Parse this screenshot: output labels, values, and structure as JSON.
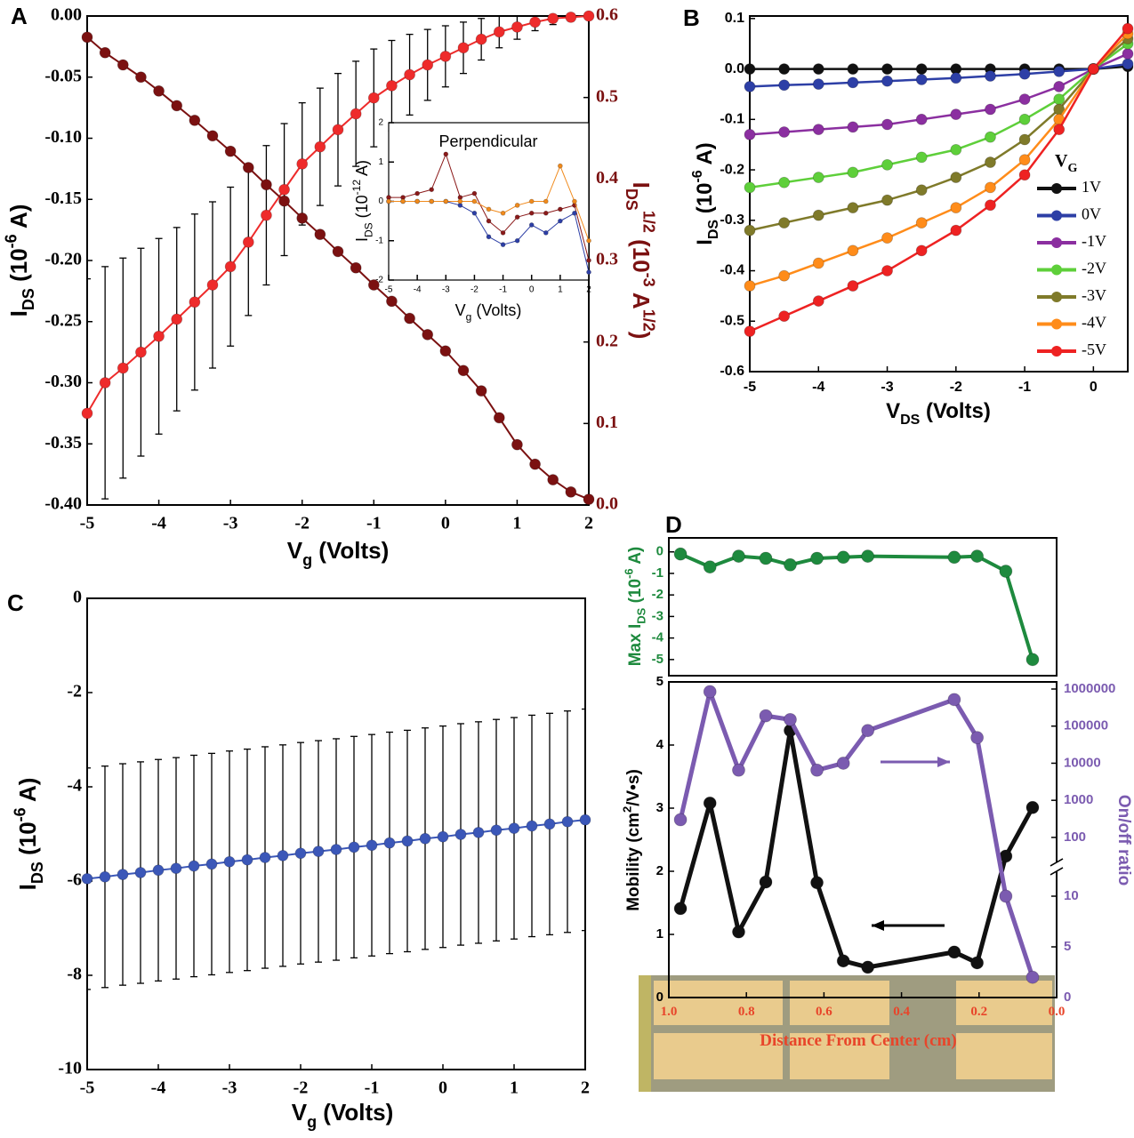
{
  "chart_data": [
    {
      "type": "line",
      "label": "A",
      "x": [
        -5,
        -4.75,
        -4.5,
        -4.25,
        -4,
        -3.75,
        -3.5,
        -3.25,
        -3,
        -2.75,
        -2.5,
        -2.25,
        -2,
        -1.75,
        -1.5,
        -1.25,
        -1,
        -0.75,
        -0.5,
        -0.25,
        0,
        0.25,
        0.5,
        0.75,
        1,
        1.25,
        1.5,
        1.75,
        2
      ],
      "xlim": [
        -5,
        2
      ],
      "xticks": [
        -5,
        -4,
        -3,
        -2,
        -1,
        0,
        1,
        2
      ],
      "xlabel": [
        "V",
        "g",
        " (Volts)"
      ],
      "ylim": [
        -0.4,
        0
      ],
      "yticks": [
        {
          "value": -0.4,
          "label": "-0.40"
        },
        -0.35,
        {
          "value": -0.3,
          "label": "-0.30"
        },
        -0.25,
        {
          "value": -0.2,
          "label": "-0.20"
        },
        -0.15,
        {
          "value": -0.1,
          "label": "-0.10"
        },
        -0.05,
        {
          "value": 0,
          "label": "0.00"
        }
      ],
      "ylabel": [
        "I",
        "DS",
        " (10",
        "-6",
        " A)"
      ],
      "y2lim": [
        0,
        0.6
      ],
      "y2ticks": [
        {
          "value": 0,
          "label": "0.0"
        },
        0.1,
        0.2,
        0.3,
        0.4,
        0.5,
        0.6
      ],
      "y2label": [
        "I",
        "DS",
        "1/2",
        " (10",
        "-3",
        " A",
        "1/2",
        ")"
      ],
      "series": [
        {
          "color": "#ee2b2b",
          "values": [
            -0.325,
            -0.3,
            -0.288,
            -0.275,
            -0.262,
            -0.248,
            -0.234,
            -0.22,
            -0.205,
            -0.185,
            -0.163,
            -0.142,
            -0.121,
            -0.107,
            -0.093,
            -0.08,
            -0.067,
            -0.057,
            -0.048,
            -0.04,
            -0.033,
            -0.026,
            -0.019,
            -0.013,
            -0.009,
            -0.005,
            -0.002,
            -0.001,
            0
          ],
          "errors": [
            0.11,
            0.095,
            0.09,
            0.085,
            0.08,
            0.075,
            0.072,
            0.068,
            0.065,
            0.06,
            0.057,
            0.054,
            0.05,
            0.048,
            0.046,
            0.043,
            0.04,
            0.037,
            0.033,
            0.029,
            0.025,
            0.021,
            0.017,
            0.013,
            0.01,
            0.007,
            0.005,
            0.003,
            0.002
          ]
        },
        {
          "color": "#7b1111",
          "axis": "y2",
          "values": [
            0.574,
            0.555,
            0.54,
            0.525,
            0.508,
            0.49,
            0.472,
            0.453,
            0.434,
            0.414,
            0.393,
            0.373,
            0.352,
            0.332,
            0.311,
            0.291,
            0.27,
            0.25,
            0.229,
            0.209,
            0.189,
            0.165,
            0.14,
            0.107,
            0.074,
            0.05,
            0.031,
            0.016,
            0.007
          ]
        }
      ]
    },
    {
      "type": "line",
      "title": "Perpendicular",
      "x": [
        -5,
        -4.5,
        -4,
        -3.5,
        -3,
        -2.5,
        -2,
        -1.5,
        -1,
        -0.5,
        0,
        0.5,
        1,
        1.5,
        2
      ],
      "xlim": [
        -5,
        2
      ],
      "xticks": [
        -5,
        -4,
        -3,
        -2,
        -1,
        0,
        1,
        2
      ],
      "xlabel": [
        "V",
        "g",
        " (Volts)"
      ],
      "ylim": [
        -2,
        2
      ],
      "yticks": [
        -2,
        -1,
        0,
        1,
        2
      ],
      "ylabel": [
        "I",
        "DS",
        " (10",
        "-12",
        " A)"
      ],
      "series": [
        {
          "color": "#8b1a1a",
          "values": [
            0.1,
            0.1,
            0.2,
            0.3,
            1.2,
            0.1,
            0.2,
            -0.5,
            -0.8,
            -0.4,
            -0.3,
            -0.3,
            -0.2,
            -0.1,
            -1.5
          ]
        },
        {
          "color": "#2d3fa6",
          "values": [
            0,
            0,
            0,
            0,
            0,
            -0.1,
            -0.3,
            -0.9,
            -1.1,
            -1,
            -0.6,
            -0.8,
            -0.5,
            -0.3,
            -1.8
          ]
        },
        {
          "color": "#f08a1c",
          "values": [
            0,
            0,
            0,
            0,
            0,
            0,
            0,
            -0.2,
            -0.3,
            -0.1,
            0,
            0,
            0.9,
            0,
            -1
          ]
        }
      ]
    },
    {
      "type": "line",
      "label": "B",
      "x": [
        -5,
        -4.5,
        -4,
        -3.5,
        -3,
        -2.5,
        -2,
        -1.5,
        -1,
        -0.5,
        0,
        0.5
      ],
      "xlim": [
        -5,
        0.5
      ],
      "xticks": [
        -5,
        -4,
        -3,
        -2,
        -1,
        0
      ],
      "xlabel": [
        "V",
        "DS",
        " (Volts)"
      ],
      "ylim": [
        -0.6,
        0.105
      ],
      "yticks": [
        -0.6,
        -0.5,
        -0.4,
        -0.3,
        -0.2,
        -0.1,
        {
          "value": 0,
          "label": "0.0"
        },
        0.1
      ],
      "ylabel": [
        "I",
        "DS",
        " (10",
        "-6",
        " A)"
      ],
      "legend_title": [
        "V",
        "G"
      ],
      "legend": "right",
      "series": [
        {
          "name": "1V",
          "color": "#111111",
          "values": [
            0,
            0,
            0,
            0,
            0,
            0,
            0,
            0,
            0,
            0,
            0,
            0.005
          ]
        },
        {
          "name": "0V",
          "color": "#2d3fa6",
          "values": [
            -0.035,
            -0.032,
            -0.03,
            -0.027,
            -0.024,
            -0.021,
            -0.018,
            -0.014,
            -0.01,
            -0.005,
            0,
            0.01
          ]
        },
        {
          "name": "-1V",
          "color": "#8b2fa0",
          "values": [
            -0.13,
            -0.125,
            -0.12,
            -0.115,
            -0.11,
            -0.1,
            -0.09,
            -0.08,
            -0.06,
            -0.035,
            0,
            0.03
          ]
        },
        {
          "name": "-2V",
          "color": "#5ecf3a",
          "values": [
            -0.235,
            -0.225,
            -0.215,
            -0.205,
            -0.19,
            -0.175,
            -0.16,
            -0.135,
            -0.1,
            -0.06,
            0,
            0.05
          ]
        },
        {
          "name": "-3V",
          "color": "#7f7a2a",
          "values": [
            -0.32,
            -0.305,
            -0.29,
            -0.275,
            -0.26,
            -0.24,
            -0.215,
            -0.185,
            -0.14,
            -0.08,
            0,
            0.06
          ]
        },
        {
          "name": "-4V",
          "color": "#ff8c1a",
          "values": [
            -0.43,
            -0.41,
            -0.385,
            -0.36,
            -0.335,
            -0.305,
            -0.275,
            -0.235,
            -0.18,
            -0.1,
            0,
            0.07
          ]
        },
        {
          "name": "-5V",
          "color": "#ee2222",
          "values": [
            -0.52,
            -0.49,
            -0.46,
            -0.43,
            -0.4,
            -0.36,
            -0.32,
            -0.27,
            -0.21,
            -0.12,
            0,
            0.08
          ]
        }
      ]
    },
    {
      "type": "line",
      "label": "C",
      "x": [
        -5,
        -4.75,
        -4.5,
        -4.25,
        -4,
        -3.75,
        -3.5,
        -3.25,
        -3,
        -2.75,
        -2.5,
        -2.25,
        -2,
        -1.75,
        -1.5,
        -1.25,
        -1,
        -0.75,
        -0.5,
        -0.25,
        0,
        0.25,
        0.5,
        0.75,
        1,
        1.25,
        1.5,
        1.75,
        2
      ],
      "xlim": [
        -5,
        2
      ],
      "xticks": [
        -5,
        -4,
        -3,
        -2,
        -1,
        0,
        1,
        2
      ],
      "xlabel": [
        "V",
        "g",
        " (Volts)"
      ],
      "ylim": [
        -10,
        0
      ],
      "yticks": [
        -10,
        -8,
        -6,
        -4,
        -2,
        0
      ],
      "ylabel": [
        "I",
        "DS",
        " (10",
        "-6",
        " A)"
      ],
      "series": [
        {
          "color": "#3b57b8",
          "values": [
            -5.95,
            -5.91,
            -5.86,
            -5.82,
            -5.77,
            -5.73,
            -5.68,
            -5.64,
            -5.59,
            -5.55,
            -5.5,
            -5.46,
            -5.41,
            -5.37,
            -5.33,
            -5.28,
            -5.24,
            -5.19,
            -5.15,
            -5.1,
            -5.06,
            -5.01,
            -4.97,
            -4.92,
            -4.88,
            -4.83,
            -4.79,
            -4.74,
            -4.7
          ],
          "errors": [
            2.35,
            2.35,
            2.35,
            2.35,
            2.35,
            2.35,
            2.35,
            2.35,
            2.35,
            2.35,
            2.35,
            2.35,
            2.35,
            2.35,
            2.35,
            2.35,
            2.35,
            2.35,
            2.35,
            2.35,
            2.35,
            2.35,
            2.35,
            2.35,
            2.35,
            2.35,
            2.35,
            2.35,
            2.35
          ]
        }
      ]
    },
    {
      "type": "line",
      "label": "D",
      "x": [
        0.97,
        0.894,
        0.82,
        0.75,
        0.687,
        0.618,
        0.55,
        0.487,
        0.264,
        0.205,
        0.131,
        0.062
      ],
      "xlim": [
        1,
        0
      ],
      "ylim": [
        -5.75,
        0.65
      ],
      "yticks": [
        -5,
        -4,
        -3,
        -2,
        -1,
        0
      ],
      "ylabel": [
        "Max I",
        "DS",
        " (10",
        "-6",
        " A)"
      ],
      "ylabel_color": "#1e8a3e",
      "series": [
        {
          "color": "#1e8a3e",
          "values": [
            -0.1,
            -0.7,
            -0.2,
            -0.3,
            -0.6,
            -0.3,
            -0.25,
            -0.2,
            -0.25,
            -0.2,
            -0.9,
            -5
          ]
        }
      ]
    },
    {
      "type": "line",
      "x": [
        0.97,
        0.894,
        0.82,
        0.75,
        0.687,
        0.618,
        0.55,
        0.487,
        0.264,
        0.205,
        0.131,
        0.062
      ],
      "xlim": [
        1,
        0
      ],
      "xticks": [
        {
          "value": 1,
          "label": "1.0"
        },
        0.8,
        0.6,
        0.4,
        0.2,
        {
          "value": 0,
          "label": "0.0"
        }
      ],
      "xlabel": "Distance From Center (cm)",
      "xlabel_color": "#e8452a",
      "ylim": [
        0,
        5
      ],
      "yticks": [
        0,
        1,
        2,
        3,
        4,
        5
      ],
      "ylabel": [
        "Mobility (cm",
        "2",
        "/V•s)"
      ],
      "y2lim": [
        0,
        1000000
      ],
      "y2ticks": [
        0,
        5,
        10,
        100,
        1000,
        10000,
        100000,
        1000000
      ],
      "y2break": [
        10,
        100
      ],
      "y2label": "On/off ratio",
      "series": [
        {
          "color": "#111111",
          "values": [
            1.41,
            3.08,
            1.04,
            1.83,
            4.23,
            1.82,
            0.58,
            0.48,
            0.72,
            0.55,
            2.24,
            3.01
          ]
        },
        {
          "color": "#7b5bb0",
          "axis": "y2",
          "values": [
            300,
            850000,
            6500,
            190000,
            150000,
            6500,
            10000,
            76000,
            520000,
            49000,
            10,
            2
          ]
        }
      ]
    }
  ]
}
